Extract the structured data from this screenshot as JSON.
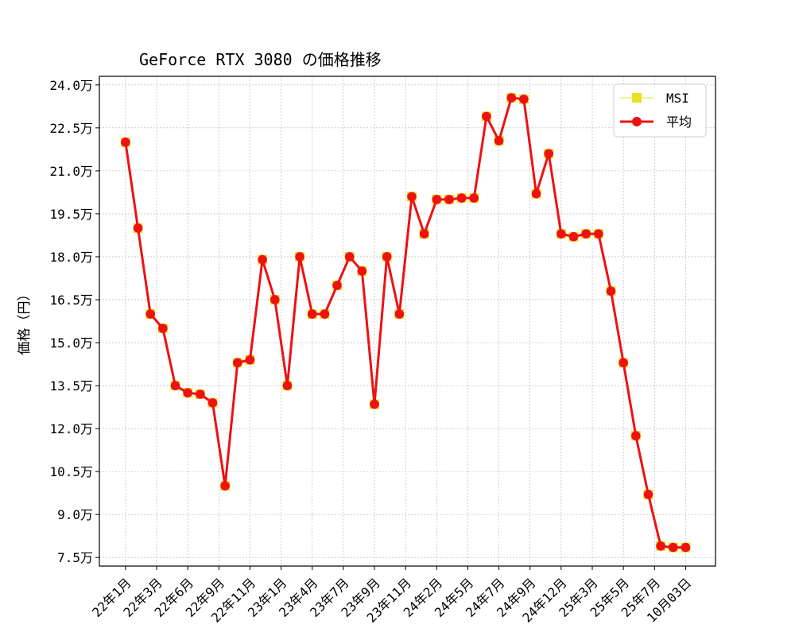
{
  "chart_data": {
    "type": "line",
    "title": "GeForce RTX 3080 の価格推移",
    "xlabel": "",
    "ylabel": "価格（円）",
    "ylim": [
      7.2,
      24.3
    ],
    "y_ticks": [
      7.5,
      9.0,
      10.5,
      12.0,
      13.5,
      15.0,
      16.5,
      18.0,
      19.5,
      21.0,
      22.5,
      24.0
    ],
    "y_tick_labels": [
      "7.5万",
      "9.0万",
      "10.5万",
      "12.0万",
      "13.5万",
      "15.0万",
      "16.5万",
      "18.0万",
      "19.5万",
      "21.0万",
      "22.5万",
      "24.0万"
    ],
    "y_unit": "万円",
    "x_tick_positions": [
      0,
      2.5,
      5,
      7.5,
      10,
      12.5,
      15,
      17.5,
      20,
      22.5,
      25,
      27.5,
      30,
      32.5,
      35,
      37.5,
      40,
      42.5,
      45
    ],
    "x_tick_labels": [
      "22年1月",
      "22年3月",
      "22年6月",
      "22年9月",
      "22年11月",
      "23年1月",
      "23年4月",
      "23年7月",
      "23年9月",
      "23年11月",
      "24年2月",
      "24年5月",
      "24年7月",
      "24年9月",
      "24年12月",
      "25年3月",
      "25年5月",
      "25年7月",
      "10月03日"
    ],
    "x_range": [
      -2.1,
      47.4
    ],
    "grid": true,
    "legend_position": "top-right",
    "series": [
      {
        "name": "MSI",
        "color": "#e8e020",
        "marker": "square",
        "values": [
          22.0,
          19.0,
          16.0,
          15.5,
          13.5,
          13.25,
          13.2,
          12.9,
          10.0,
          14.3,
          14.4,
          17.9,
          16.5,
          13.5,
          18.0,
          16.0,
          16.0,
          17.0,
          18.0,
          17.5,
          12.85,
          18.0,
          16.0,
          20.1,
          18.8,
          20.0,
          20.0,
          20.05,
          20.05,
          22.9,
          22.05,
          23.55,
          23.5,
          20.2,
          21.6,
          18.8,
          18.7,
          18.8,
          18.8,
          16.8,
          14.3,
          11.75,
          9.7,
          7.9,
          7.85,
          7.85
        ]
      },
      {
        "name": "平均",
        "color": "#ee1111",
        "marker": "circle",
        "values": [
          22.0,
          19.0,
          16.0,
          15.5,
          13.5,
          13.25,
          13.2,
          12.9,
          10.0,
          14.3,
          14.4,
          17.9,
          16.5,
          13.5,
          18.0,
          16.0,
          16.0,
          17.0,
          18.0,
          17.5,
          12.85,
          18.0,
          16.0,
          20.1,
          18.8,
          20.0,
          20.0,
          20.05,
          20.05,
          22.9,
          22.05,
          23.55,
          23.5,
          20.2,
          21.6,
          18.8,
          18.7,
          18.8,
          18.8,
          16.8,
          14.3,
          11.75,
          9.7,
          7.9,
          7.85,
          7.85
        ]
      }
    ]
  }
}
